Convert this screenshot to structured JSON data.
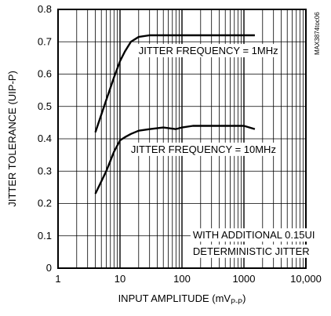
{
  "chart_data": {
    "type": "line",
    "title": "",
    "xlabel": "INPUT AMPLITUDE (mV",
    "xlabel_sub": "P-P",
    "xlabel_close": ")",
    "ylabel": "JITTER TOLERANCE (UIP-P)",
    "xscale": "log",
    "xlim": [
      1,
      10000
    ],
    "ylim": [
      0,
      0.8
    ],
    "grid": true,
    "x_ticks": [
      1,
      10,
      100,
      1000,
      10000
    ],
    "x_tick_labels": [
      "1",
      "10",
      "100",
      "1000",
      "10,000"
    ],
    "y_ticks": [
      0,
      0.1,
      0.2,
      0.3,
      0.4,
      0.5,
      0.6,
      0.7,
      0.8
    ],
    "y_tick_labels": [
      "0",
      "0.1",
      "0.2",
      "0.3",
      "0.4",
      "0.5",
      "0.6",
      "0.7",
      "0.8"
    ],
    "series": [
      {
        "x": [
          4,
          6,
          8,
          10,
          12,
          15,
          20,
          30,
          50,
          100,
          200,
          500,
          1000,
          1500
        ],
        "y": [
          0.42,
          0.52,
          0.59,
          0.64,
          0.67,
          0.7,
          0.715,
          0.72,
          0.72,
          0.72,
          0.72,
          0.72,
          0.72,
          0.72
        ],
        "color": "#000000"
      },
      {
        "x": [
          4,
          6,
          8,
          10,
          12,
          15,
          20,
          30,
          50,
          80,
          100,
          150,
          200,
          500,
          1000,
          1500
        ],
        "y": [
          0.23,
          0.3,
          0.36,
          0.395,
          0.405,
          0.415,
          0.425,
          0.43,
          0.435,
          0.43,
          0.435,
          0.44,
          0.44,
          0.44,
          0.44,
          0.43
        ],
        "color": "#000000"
      }
    ],
    "annotations": [
      {
        "text": "JITTER FREQUENCY = 1MHz",
        "x": 20,
        "y": 0.67,
        "anchor": "start"
      },
      {
        "text": "JITTER FREQUENCY = 10MHz",
        "x": 15,
        "y": 0.365,
        "anchor": "start"
      },
      {
        "text": "WITH ADDITIONAL 0.15UI",
        "x": 150,
        "y": 0.1,
        "anchor": "start"
      },
      {
        "text": "DETERMINISTIC JITTER",
        "x": 150,
        "y": 0.05,
        "anchor": "start"
      }
    ],
    "watermark": "MAX3874toc06"
  }
}
